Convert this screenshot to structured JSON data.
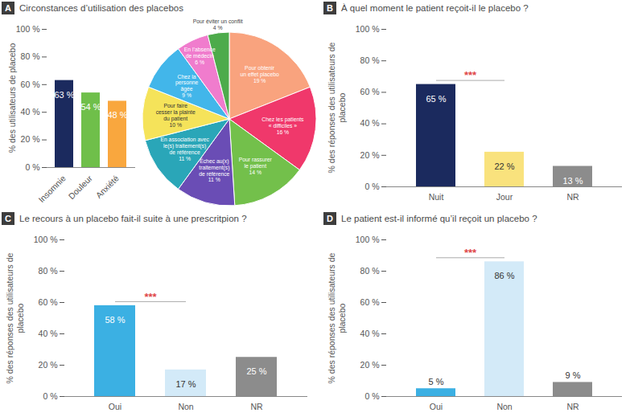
{
  "chart_data": [
    {
      "panel": "A",
      "title": "Circonstances d’utilisation des placebos",
      "type": "bar",
      "y_label": "% des utilisateurs de placebo",
      "categories": [
        "Insomnie",
        "Douleur",
        "Anxiété"
      ],
      "values": [
        63,
        54,
        48
      ],
      "value_labels": [
        "63 %",
        "54 %",
        "48 %"
      ],
      "colors": [
        "#1b2a5e",
        "#6fbf4a",
        "#f9a73e"
      ],
      "ylim": [
        0,
        100
      ],
      "yticks": [
        {
          "value": 0,
          "label": "0 %"
        },
        {
          "value": 20,
          "label": "20 %"
        },
        {
          "value": 40,
          "label": "40 %"
        },
        {
          "value": 60,
          "label": "60 %"
        },
        {
          "value": 80,
          "label": "80 %"
        },
        {
          "value": 100,
          "label": "100 %"
        }
      ],
      "data_labels": true
    },
    {
      "type": "pie",
      "categories": [
        "Pour obtenir\nun effet placebo",
        "Chez les patients\n« difficiles »",
        "Pour rassurer\nle patient",
        "Échec au(x)\ntraitement(s)\nde référence",
        "En association avec\nle(s) traitement(s)\nde référence",
        "Pour faire\ncesser la plainte\ndu patient",
        "Chez la\npersonne\nâgée",
        "En l’absence\nde médecin",
        "Pour éviter un conflit"
      ],
      "values": [
        19,
        16,
        14,
        11,
        11,
        10,
        9,
        6,
        4
      ],
      "value_labels": [
        "19 %",
        "16 %",
        "14 %",
        "11 %",
        "11 %",
        "10 %",
        "9 %",
        "6 %",
        "4 %"
      ],
      "colors": [
        "#f9a37e",
        "#f0386b",
        "#73c04b",
        "#6a4db5",
        "#2aa6b8",
        "#f5e35a",
        "#42b6ea",
        "#f07ccd",
        "#4dab4b"
      ],
      "data_labels": true
    },
    {
      "panel": "B",
      "title": "À quel moment le patient reçoit-il le placebo ?",
      "type": "bar",
      "y_label": "% des réponses des utilisateurs de placebo",
      "categories": [
        "Nuit",
        "Jour",
        "NR"
      ],
      "values": [
        65,
        22,
        13
      ],
      "value_labels": [
        "65 %",
        "22 %",
        "13 %"
      ],
      "colors": [
        "#1b2a5e",
        "#f9e27d",
        "#8c8c8c"
      ],
      "ylim": [
        0,
        100
      ],
      "yticks": [
        {
          "value": 0,
          "label": "0 %"
        },
        {
          "value": 20,
          "label": "20 %"
        },
        {
          "value": 40,
          "label": "40 %"
        },
        {
          "value": 60,
          "label": "60 %"
        },
        {
          "value": 80,
          "label": "80 %"
        },
        {
          "value": 100,
          "label": "100 %"
        }
      ],
      "data_labels": true,
      "annotations": [
        {
          "text": "***",
          "from": "Nuit",
          "to": "Jour"
        }
      ]
    },
    {
      "panel": "C",
      "title": "Le recours à un placebo fait-il suite à une prescritpion ?",
      "type": "bar",
      "y_label": "% des réponses des utilisateurs de placebo",
      "categories": [
        "Oui",
        "Non",
        "NR"
      ],
      "values": [
        58,
        17,
        25
      ],
      "value_labels": [
        "58 %",
        "17 %",
        "25 %"
      ],
      "colors": [
        "#3bb0e3",
        "#d3eaf8",
        "#8c8c8c"
      ],
      "ylim": [
        0,
        100
      ],
      "yticks": [
        {
          "value": 0,
          "label": "0 %"
        },
        {
          "value": 20,
          "label": "20 %"
        },
        {
          "value": 40,
          "label": "40 %"
        },
        {
          "value": 60,
          "label": "60 %"
        },
        {
          "value": 80,
          "label": "80 %"
        },
        {
          "value": 100,
          "label": "100 %"
        }
      ],
      "data_labels": true,
      "annotations": [
        {
          "text": "***",
          "from": "Oui",
          "to": "Non"
        }
      ]
    },
    {
      "panel": "D",
      "title": "Le patient est-il informé qu’il reçoit un placebo ?",
      "type": "bar",
      "y_label": "% des réponses des utilisateurs de placebo",
      "categories": [
        "Oui",
        "Non",
        "NR"
      ],
      "values": [
        5,
        86,
        9
      ],
      "value_labels": [
        "5 %",
        "86 %",
        "9 %"
      ],
      "colors": [
        "#3bb0e3",
        "#d3eaf8",
        "#8c8c8c"
      ],
      "ylim": [
        0,
        100
      ],
      "yticks": [
        {
          "value": 0,
          "label": "0 %"
        },
        {
          "value": 20,
          "label": "20 %"
        },
        {
          "value": 40,
          "label": "40 %"
        },
        {
          "value": 60,
          "label": "60 %"
        },
        {
          "value": 80,
          "label": "80 %"
        },
        {
          "value": 100,
          "label": "100 %"
        }
      ],
      "data_labels": true,
      "annotations": [
        {
          "text": "***",
          "from": "Oui",
          "to": "Non"
        }
      ]
    }
  ]
}
